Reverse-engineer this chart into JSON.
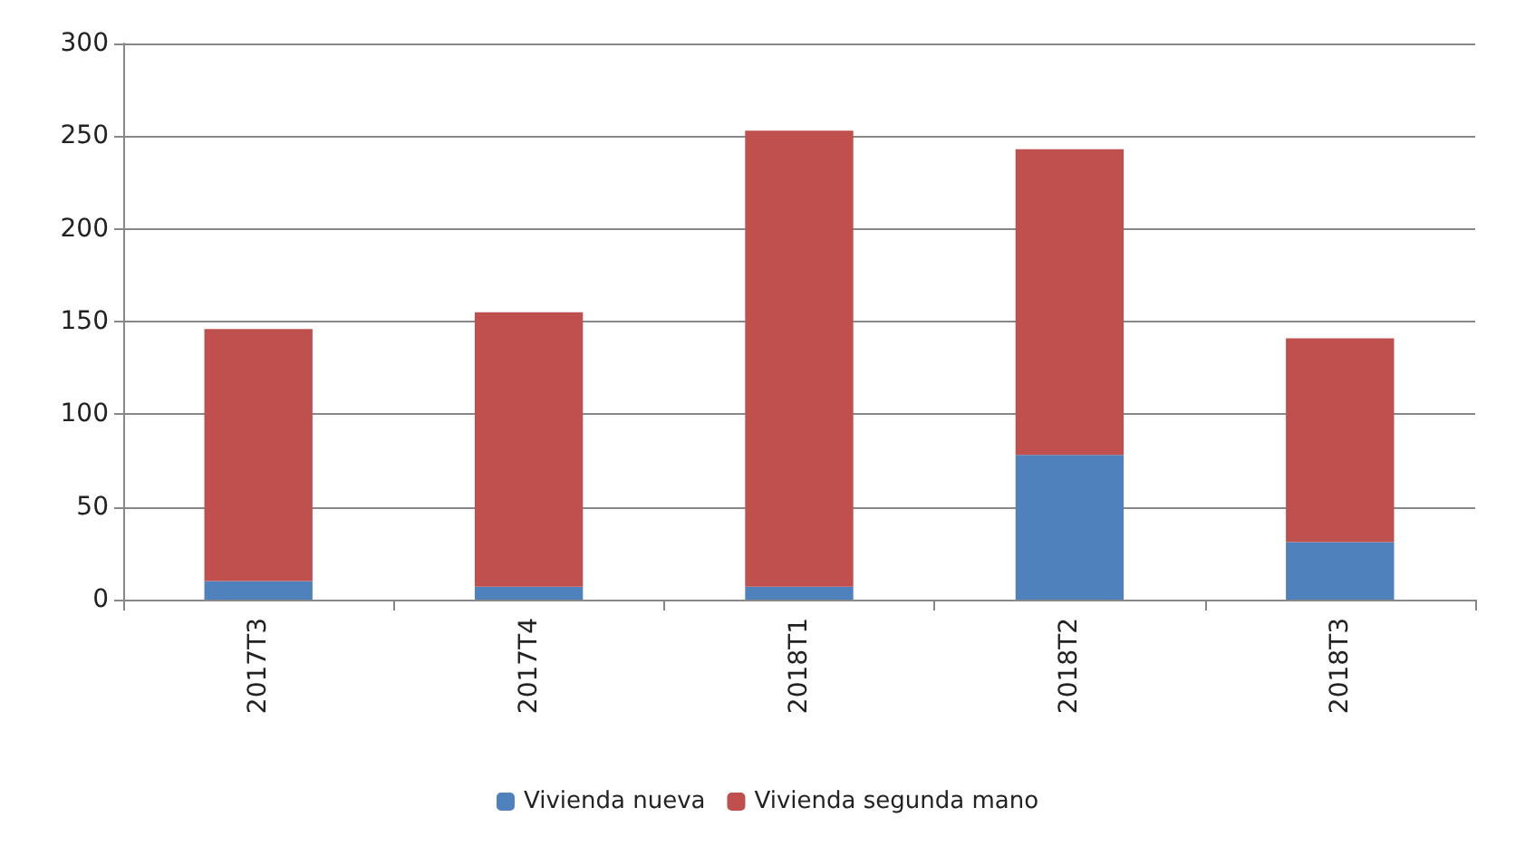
{
  "chart_data": {
    "type": "bar",
    "stacked": true,
    "categories": [
      "2017T3",
      "2017T4",
      "2018T1",
      "2018T2",
      "2018T3"
    ],
    "series": [
      {
        "name": "Vivienda nueva",
        "color": "#4f81bd",
        "values": [
          10,
          7,
          7,
          78,
          31
        ]
      },
      {
        "name": "Vivienda segunda mano",
        "color": "#c0504d",
        "values": [
          136,
          148,
          246,
          165,
          110
        ]
      }
    ],
    "ylim": [
      0,
      300
    ],
    "yticks": [
      0,
      50,
      100,
      150,
      200,
      250,
      300
    ],
    "grid": "y",
    "legend": "bottom"
  }
}
